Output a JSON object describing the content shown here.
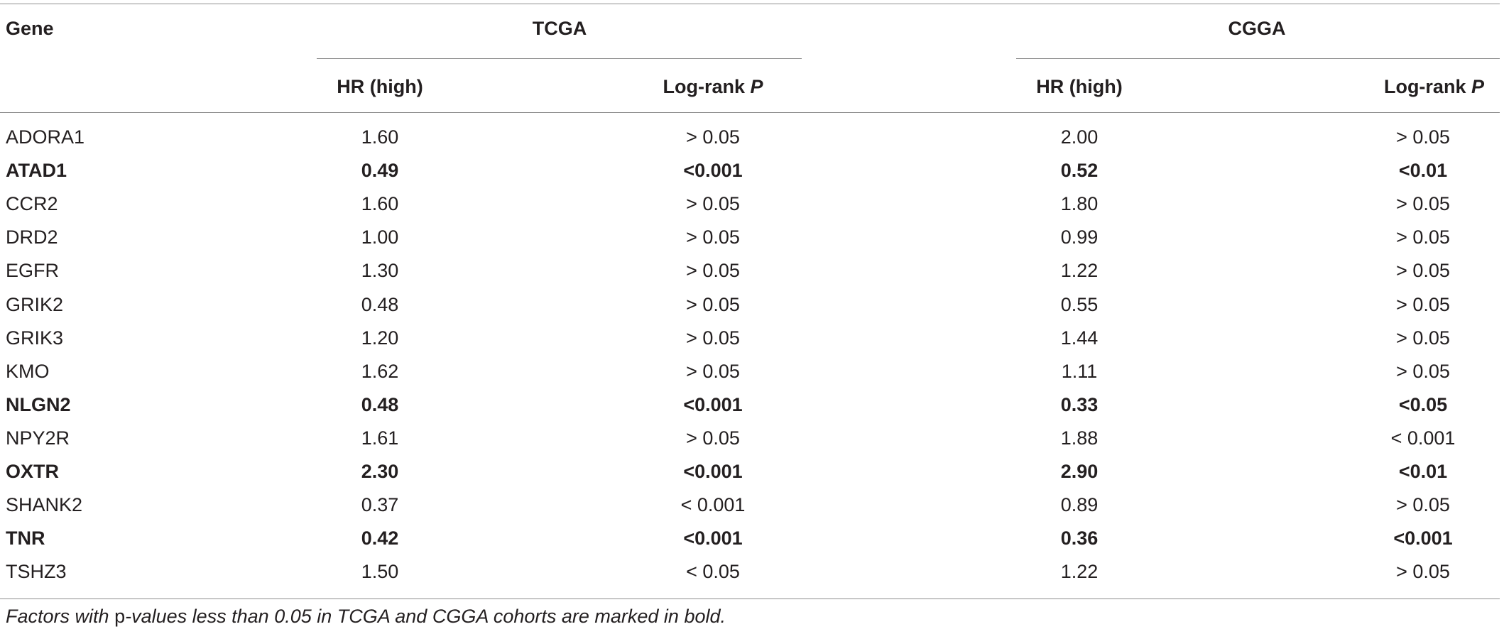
{
  "header": {
    "gene": "Gene",
    "group1": "TCGA",
    "group2": "CGGA",
    "hr": "HR (high)",
    "logrank": "Log-rank",
    "p": "P"
  },
  "rows": [
    {
      "gene": "ADORA1",
      "tcga_hr": "1.60",
      "tcga_p": "> 0.05",
      "cgga_hr": "2.00",
      "cgga_p": "> 0.05",
      "bold": false
    },
    {
      "gene": "ATAD1",
      "tcga_hr": "0.49",
      "tcga_p": "<0.001",
      "cgga_hr": "0.52",
      "cgga_p": "<0.01",
      "bold": true
    },
    {
      "gene": "CCR2",
      "tcga_hr": "1.60",
      "tcga_p": "> 0.05",
      "cgga_hr": "1.80",
      "cgga_p": "> 0.05",
      "bold": false
    },
    {
      "gene": "DRD2",
      "tcga_hr": "1.00",
      "tcga_p": "> 0.05",
      "cgga_hr": "0.99",
      "cgga_p": "> 0.05",
      "bold": false
    },
    {
      "gene": "EGFR",
      "tcga_hr": "1.30",
      "tcga_p": "> 0.05",
      "cgga_hr": "1.22",
      "cgga_p": "> 0.05",
      "bold": false
    },
    {
      "gene": "GRIK2",
      "tcga_hr": "0.48",
      "tcga_p": "> 0.05",
      "cgga_hr": "0.55",
      "cgga_p": "> 0.05",
      "bold": false
    },
    {
      "gene": "GRIK3",
      "tcga_hr": "1.20",
      "tcga_p": "> 0.05",
      "cgga_hr": "1.44",
      "cgga_p": "> 0.05",
      "bold": false
    },
    {
      "gene": "KMO",
      "tcga_hr": "1.62",
      "tcga_p": "> 0.05",
      "cgga_hr": "1.11",
      "cgga_p": "> 0.05",
      "bold": false
    },
    {
      "gene": "NLGN2",
      "tcga_hr": "0.48",
      "tcga_p": "<0.001",
      "cgga_hr": "0.33",
      "cgga_p": "<0.05",
      "bold": true
    },
    {
      "gene": "NPY2R",
      "tcga_hr": "1.61",
      "tcga_p": "> 0.05",
      "cgga_hr": "1.88",
      "cgga_p": "< 0.001",
      "bold": false
    },
    {
      "gene": "OXTR",
      "tcga_hr": "2.30",
      "tcga_p": "<0.001",
      "cgga_hr": "2.90",
      "cgga_p": "<0.01",
      "bold": true
    },
    {
      "gene": "SHANK2",
      "tcga_hr": "0.37",
      "tcga_p": "< 0.001",
      "cgga_hr": "0.89",
      "cgga_p": "> 0.05",
      "bold": false
    },
    {
      "gene": "TNR",
      "tcga_hr": "0.42",
      "tcga_p": "<0.001",
      "cgga_hr": "0.36",
      "cgga_p": "<0.001",
      "bold": true
    },
    {
      "gene": "TSHZ3",
      "tcga_hr": "1.50",
      "tcga_p": "< 0.05",
      "cgga_hr": "1.22",
      "cgga_p": "> 0.05",
      "bold": false
    }
  ],
  "footnote": {
    "pre": "Factors with",
    "pword": "p",
    "post": "-values less than 0.05 in TCGA and CGGA cohorts are marked in bold."
  }
}
